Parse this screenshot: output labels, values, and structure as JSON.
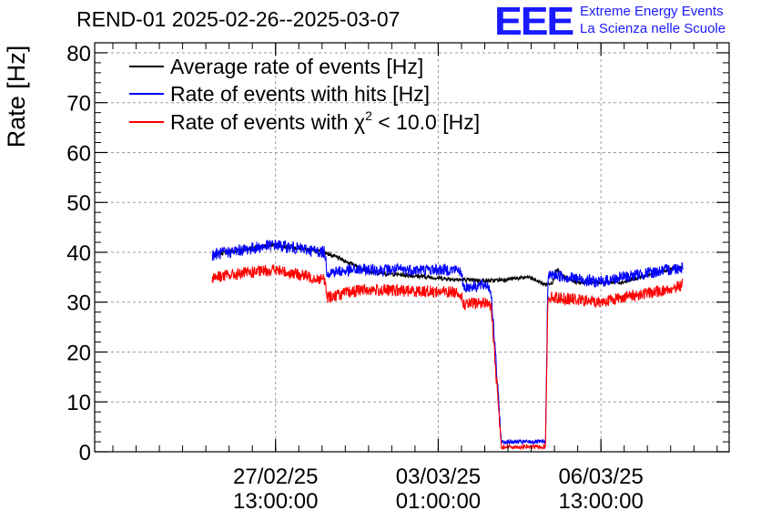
{
  "title": "REND-01 2025-02-26--2025-03-07",
  "brand": {
    "logo_text": "EEE",
    "line1": "Extreme Energy Events",
    "line2": "La Scienza nelle Scuole",
    "color": "#1a1aff"
  },
  "chart_data": {
    "type": "line",
    "title": "REND-01 2025-02-26--2025-03-07",
    "xlabel": "",
    "ylabel": "Rate [Hz]",
    "ylim": [
      0,
      82
    ],
    "yticks": [
      0,
      10,
      20,
      30,
      40,
      50,
      60,
      70,
      80
    ],
    "xlim": [
      -2.35,
      11.3
    ],
    "x_units": "days since 2025-02-26 00:00",
    "xticks": [
      {
        "x": 1.5417,
        "line1": "27/02/25",
        "line2": "13:00:00"
      },
      {
        "x": 5.0417,
        "line1": "03/03/25",
        "line2": "01:00:00"
      },
      {
        "x": 8.5417,
        "line1": "06/03/25",
        "line2": "13:00:00"
      }
    ],
    "grid": true,
    "legend_position": "top-left",
    "legend": [
      {
        "label_main": "Average rate of events [Hz]",
        "color": "#000000"
      },
      {
        "label_main": "Rate of events with hits [Hz]",
        "color": "#0000ff"
      },
      {
        "label_pre": "Rate of events with ",
        "label_symbol": "χ",
        "label_sup": "2",
        "label_post": " < 10.0 [Hz]",
        "color": "#ff0000"
      }
    ],
    "series": [
      {
        "name": "Average rate of events",
        "color": "#000000",
        "noise": 0.4,
        "x": [
          0.18,
          1.5,
          2.6,
          3.6,
          5.5,
          6.2,
          6.4,
          7.0,
          7.35,
          7.5,
          7.6,
          7.75,
          8.0,
          9.0,
          10.0,
          10.3
        ],
        "y": [
          39.5,
          41.5,
          40.0,
          36.0,
          34.5,
          34.3,
          34.5,
          35.0,
          33.5,
          34.0,
          36.5,
          35.0,
          34.0,
          34.0,
          36.5,
          37.0
        ]
      },
      {
        "name": "Rate of events with hits",
        "color": "#0000ff",
        "noise": 1.2,
        "x": [
          0.18,
          1.5,
          2.6,
          2.65,
          3.4,
          5.5,
          5.6,
          6.1,
          6.18,
          6.4,
          7.35,
          7.4,
          7.5,
          8.5,
          9.0,
          10.0,
          10.3
        ],
        "y": [
          39.5,
          41.5,
          40.0,
          36.0,
          36.5,
          36.5,
          33.0,
          33.5,
          32.0,
          2.0,
          2.0,
          35.0,
          35.5,
          34.0,
          35.0,
          36.5,
          37.0
        ]
      },
      {
        "name": "Rate of events with chi2 < 10.0",
        "color": "#ff0000",
        "noise": 1.2,
        "x": [
          0.18,
          1.5,
          2.6,
          2.65,
          3.4,
          5.5,
          5.6,
          6.1,
          6.18,
          6.4,
          7.35,
          7.4,
          7.5,
          8.5,
          9.0,
          10.0,
          10.3
        ],
        "y": [
          35.0,
          36.5,
          34.5,
          31.0,
          32.5,
          32.0,
          29.5,
          30.0,
          29.0,
          1.0,
          1.0,
          31.0,
          31.0,
          30.0,
          31.0,
          32.5,
          33.5
        ]
      }
    ]
  }
}
